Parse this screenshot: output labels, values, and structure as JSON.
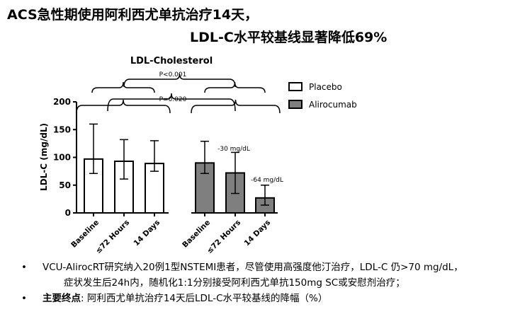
{
  "slide": {
    "title_line1": "ACS急性期使用阿利西尤单抗治疗14天，",
    "title_line2": "LDL-C水平较基线显著降低69%"
  },
  "chart_data": {
    "type": "bar",
    "title": "LDL-Cholesterol",
    "ylabel": "LDL-C (mg/dL)",
    "ylim": [
      0,
      200
    ],
    "yticks": [
      0,
      50,
      100,
      150,
      200
    ],
    "grid": false,
    "legend_position": "top-right",
    "series": [
      {
        "name": "Placebo",
        "color": "#ffffff",
        "categories": [
          "Baseline",
          "≤72 Hours",
          "14 Days"
        ],
        "values": [
          97,
          93,
          89
        ],
        "err_upper": [
          160,
          132,
          130
        ],
        "err_lower": [
          71,
          61,
          75
        ]
      },
      {
        "name": "Alirocumab",
        "color": "#7f7f7f",
        "categories": [
          "Baseline",
          "≤72 Hours",
          "14 Days"
        ],
        "values": [
          90,
          72,
          27
        ],
        "err_upper": [
          129,
          109,
          50
        ],
        "err_lower": [
          71,
          35,
          14
        ]
      }
    ],
    "annotations": {
      "p_top": "P<0.001",
      "p_mid": "P=0.020",
      "change_72h": "-30 mg/dL",
      "change_14d": "-64 mg/dL"
    }
  },
  "bullets": {
    "b1_line1": "VCU-AlirocRT研究纳入20例1型NSTEMI患者，尽管使用高强度他汀治疗，LDL-C 仍>70 mg/dL，",
    "b1_line2": "症状发生后24h内，随机化1:1分别接受阿利西尤单抗150mg SC或安慰剂治疗；",
    "b2_label": "主要终点",
    "b2_text": ": 阿利西尤单抗治疗14天后LDL-C水平较基线的降幅（%）",
    "marker": "•"
  }
}
